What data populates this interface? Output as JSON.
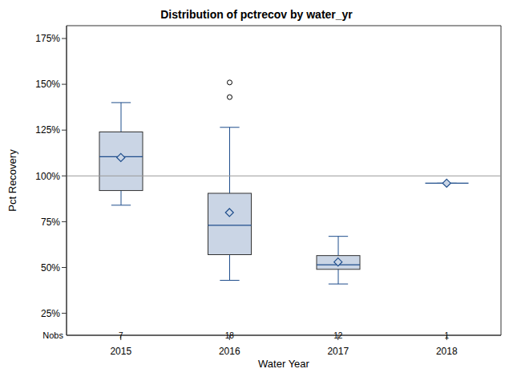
{
  "chart_data": {
    "type": "box",
    "title": "Distribution of pctrecov by water_yr",
    "x_label": "Water Year",
    "y_label": "Pct Recovery",
    "categories": [
      "2015",
      "2016",
      "2017",
      "2018"
    ],
    "min": [
      84,
      43,
      41,
      96
    ],
    "q1": [
      92,
      57,
      49,
      96
    ],
    "median": [
      110.5,
      73,
      51.5,
      96
    ],
    "q3": [
      124,
      90.5,
      56.5,
      96
    ],
    "max": [
      140,
      126.5,
      67,
      96
    ],
    "mean": [
      110,
      80,
      53,
      96
    ],
    "outliers": [
      [],
      [
        143,
        151
      ],
      [],
      []
    ],
    "n": [
      7,
      18,
      12,
      1
    ],
    "n_label": "Nobs",
    "reference_line": 100,
    "color": "#cad5e5",
    "ylim": [
      13,
      182
    ],
    "yticks": [
      {
        "value": 25,
        "label": "25%"
      },
      {
        "value": 50,
        "label": "50%"
      },
      {
        "value": 75,
        "label": "75%"
      },
      {
        "value": 100,
        "label": "100%"
      },
      {
        "value": 125,
        "label": "125%"
      },
      {
        "value": 150,
        "label": "150%"
      },
      {
        "value": 175,
        "label": "175%"
      }
    ]
  }
}
